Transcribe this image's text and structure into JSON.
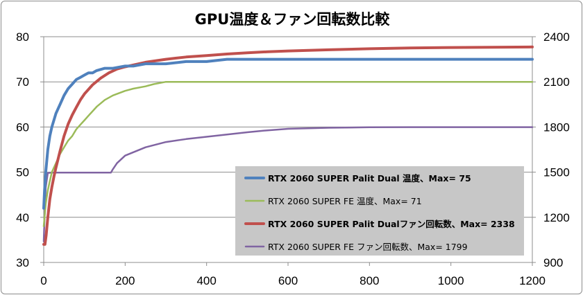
{
  "chart_data": {
    "type": "line",
    "title": "GPU温度＆ファン回転数比較",
    "xlabel": "",
    "ylabel": "",
    "y2label": "",
    "xlim": [
      0,
      1200
    ],
    "ylim": [
      30,
      80
    ],
    "y2lim": [
      900,
      2400
    ],
    "x_ticks": [
      "0",
      "200",
      "400",
      "600",
      "800",
      "1000",
      "1200"
    ],
    "y_ticks": [
      "30",
      "40",
      "50",
      "60",
      "70",
      "80"
    ],
    "y2_ticks": [
      "900",
      "1200",
      "1500",
      "1800",
      "2100",
      "2400"
    ],
    "grid": "horizontal major gridlines",
    "legend_position": "bottom-right inside plot",
    "series": [
      {
        "name": "RTX 2060 SUPER Palit Dual 温度、Max= 75",
        "axis": "left",
        "color": "#4f81bd",
        "bold": true,
        "x": [
          0,
          2,
          5,
          10,
          15,
          20,
          30,
          40,
          50,
          60,
          70,
          80,
          90,
          100,
          110,
          120,
          130,
          150,
          170,
          200,
          220,
          250,
          270,
          300,
          350,
          400,
          450,
          500,
          600,
          700,
          800,
          900,
          1000,
          1100,
          1200
        ],
        "y": [
          42,
          46,
          50,
          55,
          58,
          60,
          63,
          65,
          67,
          68.5,
          69.5,
          70.5,
          71,
          71.5,
          72,
          72,
          72.5,
          73,
          73,
          73.5,
          73.5,
          74,
          74,
          74,
          74.5,
          74.5,
          75,
          75,
          75,
          75,
          75,
          75,
          75,
          75,
          75
        ]
      },
      {
        "name": "RTX 2060 SUPER FE 温度、Max= 71",
        "axis": "left",
        "color": "#9bbb59",
        "bold": false,
        "x": [
          0,
          2,
          5,
          10,
          15,
          20,
          30,
          40,
          50,
          60,
          70,
          80,
          90,
          100,
          110,
          120,
          130,
          150,
          170,
          200,
          220,
          250,
          270,
          300,
          350,
          400,
          450,
          500,
          600,
          700,
          800,
          900,
          1000,
          1100,
          1200
        ],
        "y": [
          38,
          40,
          43,
          46,
          48,
          50,
          52,
          54,
          55.5,
          57,
          58,
          59.5,
          60.5,
          61.5,
          62.5,
          63.5,
          64.5,
          66,
          67,
          68,
          68.5,
          69,
          69.5,
          70,
          70,
          70,
          70,
          70,
          70,
          70,
          70,
          70,
          70,
          70,
          70
        ]
      },
      {
        "name": "RTX 2060 SUPER Palit Dualファン回転数、Max= 2338",
        "axis": "right",
        "color": "#c0504d",
        "bold": true,
        "x": [
          0,
          3,
          6,
          10,
          15,
          20,
          25,
          30,
          40,
          50,
          60,
          70,
          80,
          90,
          100,
          120,
          140,
          160,
          180,
          200,
          250,
          300,
          350,
          400,
          450,
          500,
          550,
          600,
          700,
          800,
          900,
          1000,
          1100,
          1200
        ],
        "y": [
          1020,
          1020,
          1080,
          1200,
          1320,
          1400,
          1470,
          1530,
          1640,
          1740,
          1820,
          1880,
          1930,
          1980,
          2020,
          2080,
          2125,
          2160,
          2185,
          2200,
          2230,
          2250,
          2265,
          2275,
          2285,
          2293,
          2300,
          2305,
          2313,
          2320,
          2325,
          2328,
          2330,
          2332
        ]
      },
      {
        "name": "RTX 2060 SUPER FE ファン回転数、Max= 1799",
        "axis": "right",
        "color": "#8064a2",
        "bold": false,
        "x": [
          0,
          2,
          5,
          10,
          20,
          50,
          100,
          150,
          165,
          170,
          180,
          200,
          250,
          300,
          350,
          400,
          450,
          500,
          550,
          600,
          700,
          800,
          900,
          1000,
          1100,
          1200
        ],
        "y": [
          1040,
          1200,
          1400,
          1495,
          1497,
          1497,
          1497,
          1497,
          1497,
          1520,
          1560,
          1610,
          1665,
          1700,
          1720,
          1735,
          1750,
          1765,
          1778,
          1788,
          1795,
          1798,
          1799,
          1799,
          1799,
          1799
        ]
      }
    ]
  }
}
